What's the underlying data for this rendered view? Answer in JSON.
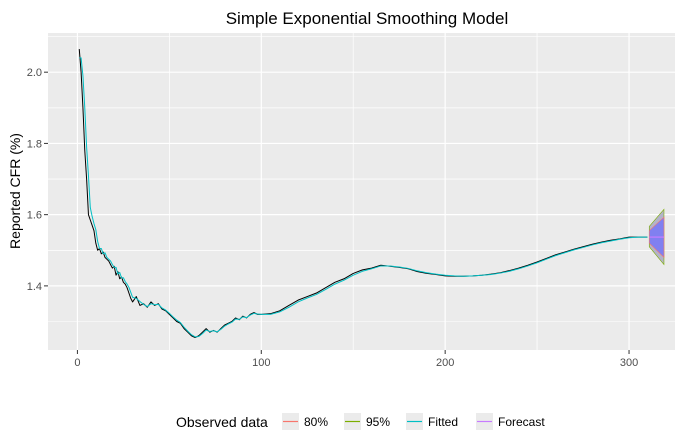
{
  "chart_data": {
    "type": "line",
    "title": "Simple Exponential Smoothing Model",
    "xlabel": "",
    "ylabel": "Reported CFR (%)",
    "xlim": [
      -16,
      325
    ],
    "ylim": [
      1.22,
      2.11
    ],
    "x_ticks": [
      0,
      100,
      200,
      300
    ],
    "y_ticks": [
      1.4,
      1.6,
      1.8,
      2.0
    ],
    "x_tick_labels": [
      "0",
      "100",
      "200",
      "300"
    ],
    "y_tick_labels": [
      "1.4",
      "1.6",
      "1.8",
      "2.0"
    ],
    "grid": true,
    "legend_position": "bottom",
    "legend_title": "Observed data",
    "legend": [
      {
        "name": "80%",
        "color": "#F8766D"
      },
      {
        "name": "95%",
        "color": "#7CAE00"
      },
      {
        "name": "Fitted",
        "color": "#00BFC4"
      },
      {
        "name": "Forecast",
        "color": "#C77CFF"
      }
    ],
    "series": [
      {
        "name": "Observed data",
        "color": "#000000",
        "x": [
          1,
          2,
          3,
          4,
          5,
          6,
          7,
          8,
          9,
          10,
          11,
          12,
          13,
          14,
          15,
          16,
          17,
          18,
          19,
          20,
          21,
          22,
          23,
          24,
          25,
          26,
          27,
          28,
          29,
          30,
          32,
          34,
          36,
          38,
          40,
          42,
          44,
          46,
          48,
          50,
          52,
          54,
          56,
          58,
          60,
          62,
          64,
          66,
          68,
          70,
          72,
          74,
          76,
          78,
          80,
          82,
          84,
          86,
          88,
          90,
          92,
          94,
          96,
          98,
          100,
          105,
          110,
          115,
          120,
          125,
          130,
          135,
          140,
          145,
          150,
          155,
          160,
          165,
          170,
          175,
          180,
          185,
          190,
          195,
          200,
          205,
          210,
          215,
          220,
          225,
          230,
          235,
          240,
          245,
          250,
          255,
          260,
          265,
          270,
          275,
          280,
          285,
          290,
          295,
          300,
          305,
          310
        ],
        "y": [
          2.065,
          2.0,
          1.9,
          1.78,
          1.7,
          1.6,
          1.585,
          1.57,
          1.555,
          1.52,
          1.5,
          1.505,
          1.49,
          1.495,
          1.48,
          1.475,
          1.47,
          1.46,
          1.45,
          1.455,
          1.43,
          1.44,
          1.42,
          1.425,
          1.41,
          1.405,
          1.395,
          1.38,
          1.365,
          1.355,
          1.37,
          1.345,
          1.35,
          1.34,
          1.355,
          1.345,
          1.35,
          1.335,
          1.33,
          1.32,
          1.31,
          1.3,
          1.295,
          1.28,
          1.27,
          1.26,
          1.255,
          1.26,
          1.27,
          1.28,
          1.27,
          1.275,
          1.27,
          1.28,
          1.29,
          1.295,
          1.3,
          1.31,
          1.305,
          1.315,
          1.31,
          1.32,
          1.325,
          1.32,
          1.32,
          1.322,
          1.33,
          1.345,
          1.36,
          1.37,
          1.38,
          1.395,
          1.41,
          1.42,
          1.435,
          1.445,
          1.45,
          1.458,
          1.455,
          1.452,
          1.448,
          1.44,
          1.435,
          1.432,
          1.428,
          1.427,
          1.427,
          1.428,
          1.43,
          1.433,
          1.437,
          1.443,
          1.45,
          1.458,
          1.467,
          1.477,
          1.487,
          1.495,
          1.503,
          1.51,
          1.517,
          1.523,
          1.528,
          1.532,
          1.537,
          1.537,
          1.537
        ]
      },
      {
        "name": "Fitted",
        "color": "#00BFC4",
        "x": [
          1,
          2,
          3,
          4,
          5,
          6,
          7,
          8,
          9,
          10,
          11,
          12,
          13,
          14,
          15,
          16,
          17,
          18,
          19,
          20,
          21,
          22,
          23,
          24,
          25,
          26,
          27,
          28,
          29,
          30,
          32,
          34,
          36,
          38,
          40,
          42,
          44,
          46,
          48,
          50,
          52,
          54,
          56,
          58,
          60,
          62,
          64,
          66,
          68,
          70,
          72,
          74,
          76,
          78,
          80,
          82,
          84,
          86,
          88,
          90,
          92,
          94,
          96,
          98,
          100,
          105,
          110,
          115,
          120,
          125,
          130,
          135,
          140,
          145,
          150,
          155,
          160,
          165,
          170,
          175,
          180,
          185,
          190,
          195,
          200,
          205,
          210,
          215,
          220,
          225,
          230,
          235,
          240,
          245,
          250,
          255,
          260,
          265,
          270,
          275,
          280,
          285,
          290,
          295,
          300,
          305,
          310
        ],
        "y": [
          2.04,
          2.04,
          1.99,
          1.9,
          1.79,
          1.71,
          1.62,
          1.595,
          1.575,
          1.558,
          1.525,
          1.505,
          1.505,
          1.49,
          1.493,
          1.48,
          1.475,
          1.47,
          1.46,
          1.452,
          1.452,
          1.433,
          1.438,
          1.422,
          1.423,
          1.412,
          1.405,
          1.396,
          1.382,
          1.368,
          1.365,
          1.356,
          1.348,
          1.342,
          1.35,
          1.347,
          1.348,
          1.338,
          1.332,
          1.323,
          1.313,
          1.304,
          1.297,
          1.284,
          1.273,
          1.263,
          1.257,
          1.258,
          1.266,
          1.276,
          1.272,
          1.274,
          1.271,
          1.278,
          1.287,
          1.293,
          1.298,
          1.307,
          1.306,
          1.313,
          1.311,
          1.318,
          1.323,
          1.321,
          1.32,
          1.32,
          1.327,
          1.34,
          1.355,
          1.366,
          1.376,
          1.39,
          1.405,
          1.416,
          1.43,
          1.441,
          1.448,
          1.456,
          1.456,
          1.453,
          1.449,
          1.442,
          1.437,
          1.433,
          1.43,
          1.428,
          1.427,
          1.428,
          1.43,
          1.432,
          1.436,
          1.441,
          1.448,
          1.456,
          1.465,
          1.475,
          1.485,
          1.493,
          1.501,
          1.508,
          1.515,
          1.521,
          1.526,
          1.531,
          1.535,
          1.537,
          1.537
        ]
      },
      {
        "name": "Forecast",
        "color": "#C77CFF",
        "x": [
          311,
          319
        ],
        "y": [
          1.537,
          1.537
        ]
      }
    ],
    "bands": [
      {
        "name": "95%",
        "color": "#7CAE00",
        "fill": "#b3b3c9",
        "x": [
          311,
          319
        ],
        "lower": [
          1.51,
          1.46
        ],
        "upper": [
          1.567,
          1.615
        ]
      },
      {
        "name": "80%",
        "color": "#F8766D",
        "fill": "#8080f0",
        "x": [
          311,
          319
        ],
        "lower": [
          1.52,
          1.48
        ],
        "upper": [
          1.555,
          1.593
        ]
      }
    ]
  }
}
